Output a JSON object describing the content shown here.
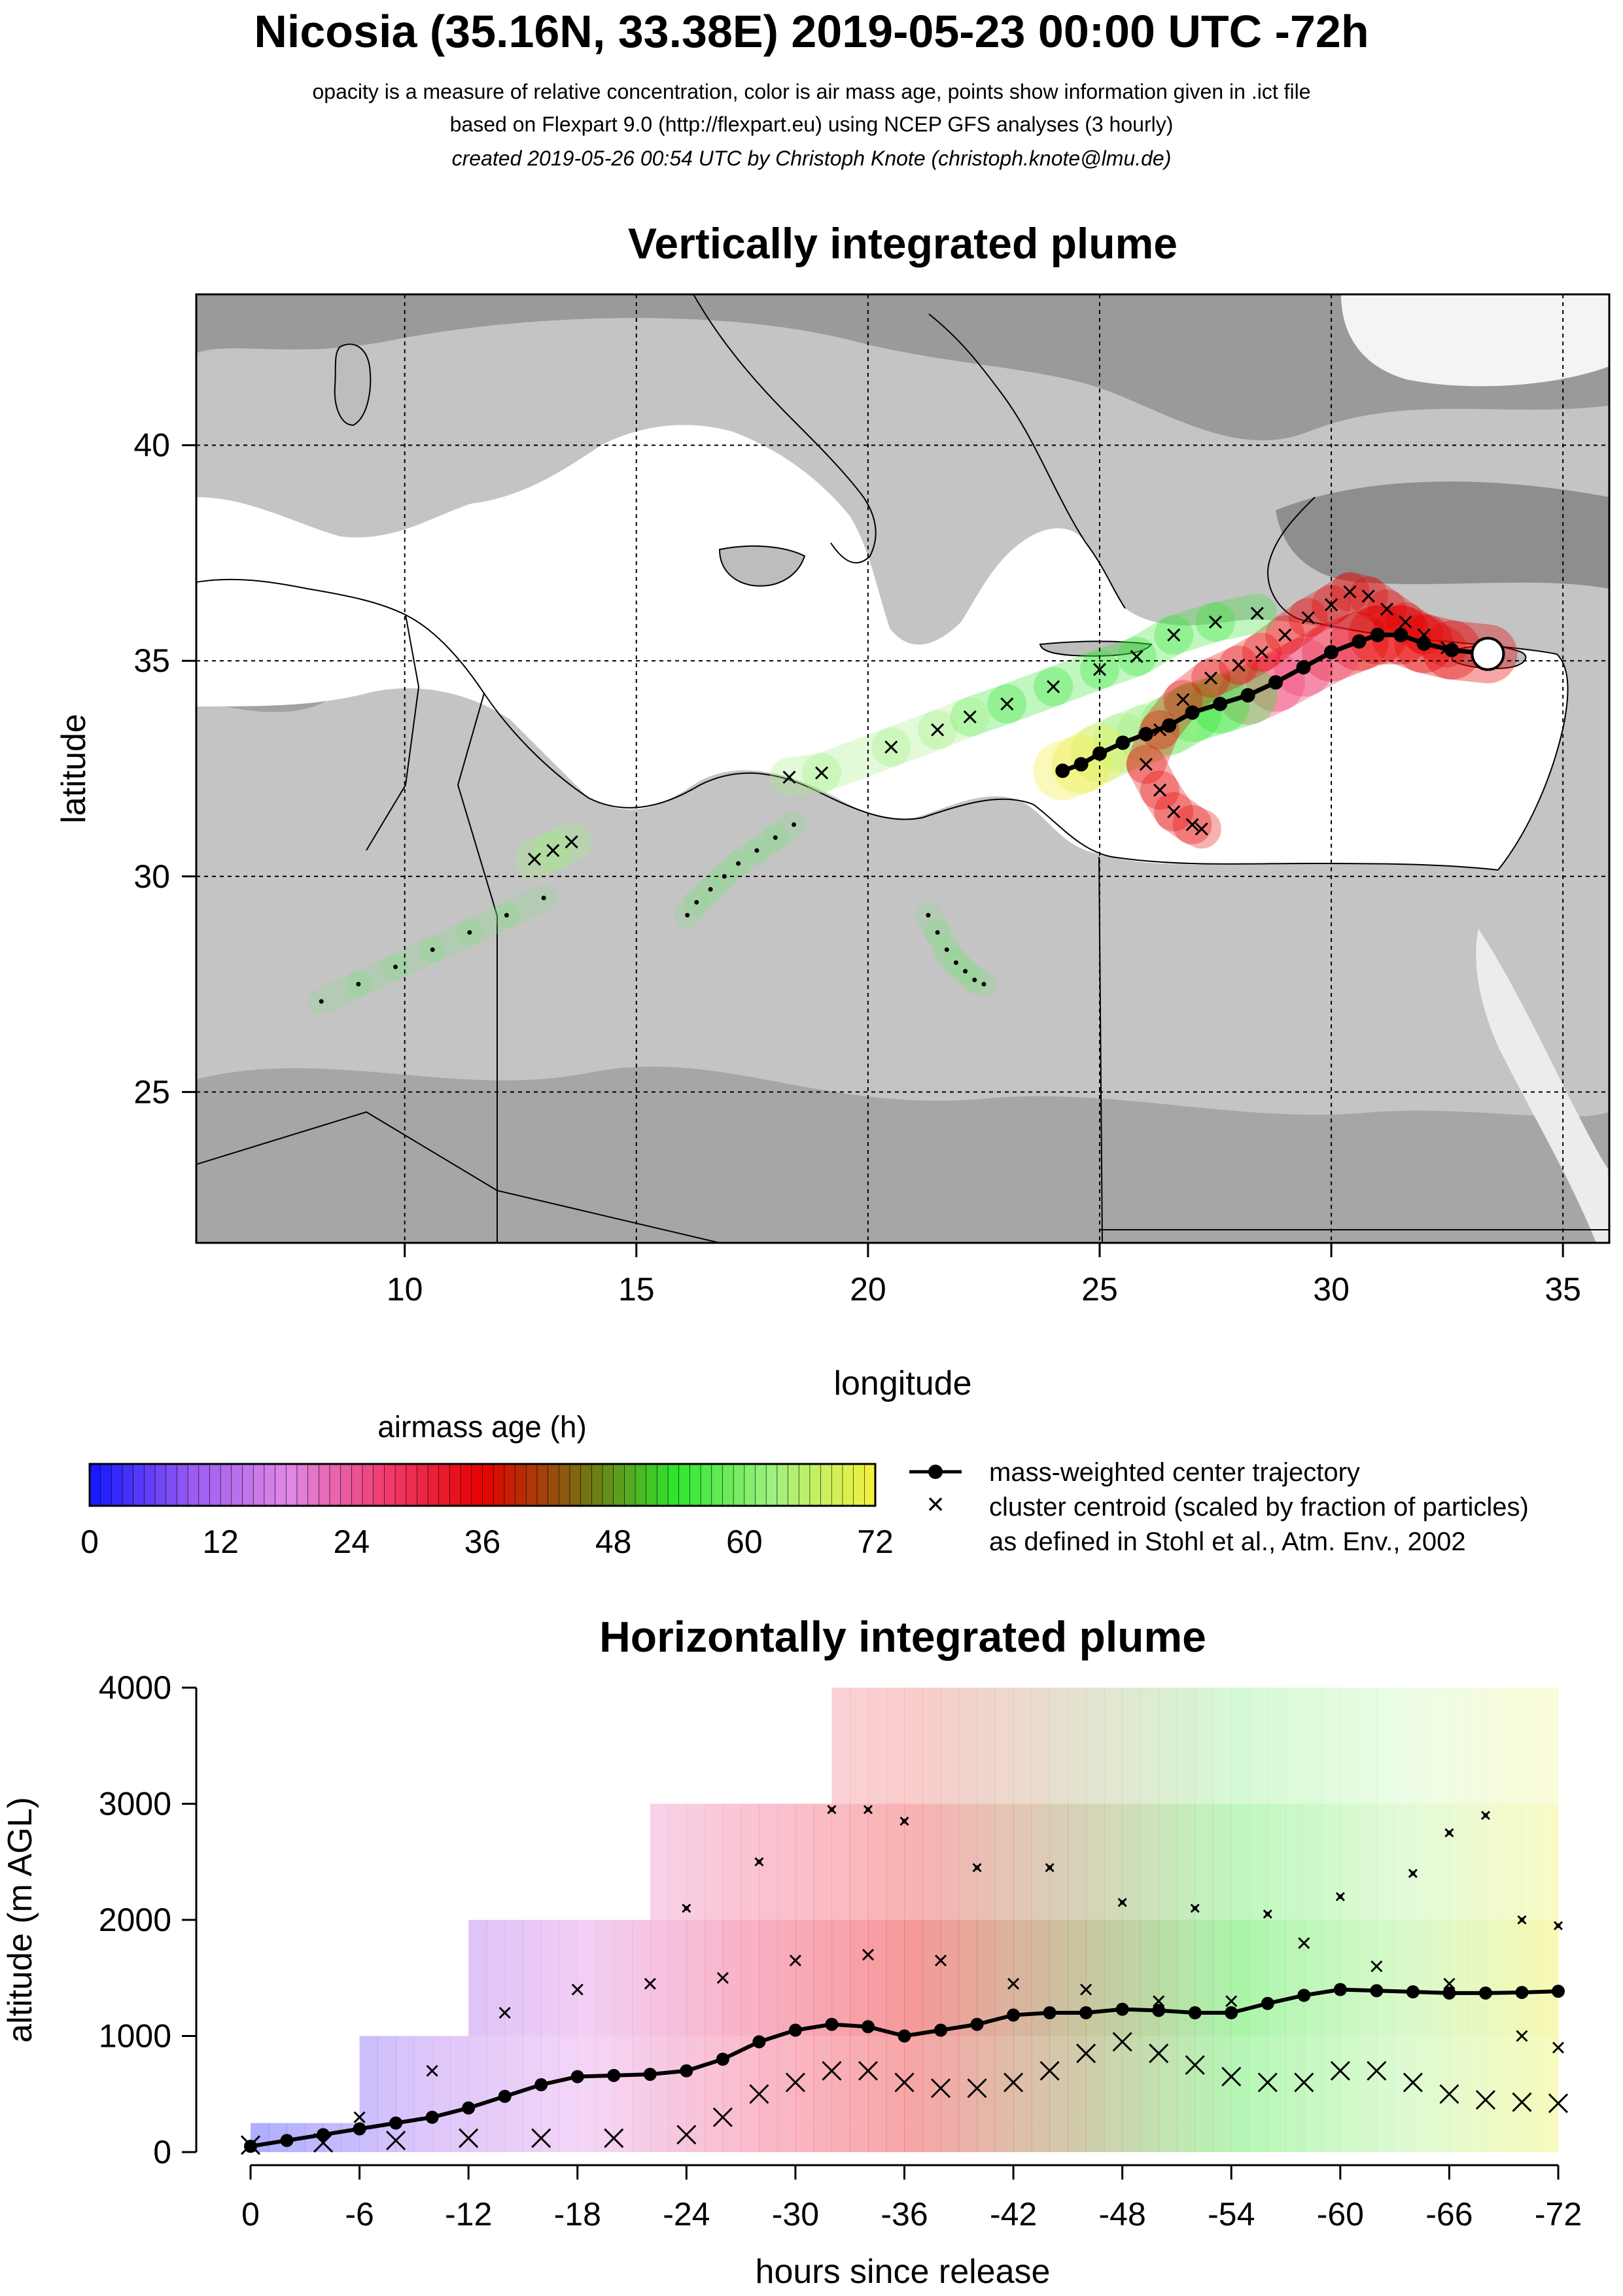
{
  "header": {
    "title": "Nicosia (35.16N, 33.38E) 2019-05-23 00:00 UTC -72h",
    "subtitle_1": "opacity is a measure of relative concentration, color is air mass age, points show information given in .ict file",
    "subtitle_2": "based on Flexpart 9.0 (http://flexpart.eu) using NCEP GFS analyses (3 hourly)",
    "subtitle_3": "created 2019-05-26 00:54 UTC by Christoph Knote (christoph.knote@lmu.de)"
  },
  "map_panel": {
    "title": "Vertically integrated plume",
    "xlabel": "longitude",
    "ylabel": "latitude"
  },
  "colorbar": {
    "title": "airmass age (h)",
    "ticks": [
      "0",
      "12",
      "24",
      "36",
      "48",
      "60",
      "72"
    ]
  },
  "legend": {
    "line_entry": "mass-weighted center trajectory",
    "cross_entry": "cluster centroid (scaled by fraction of particles)",
    "cross_entry_2": "as defined in Stohl et al., Atm. Env., 2002"
  },
  "profile_panel": {
    "title": "Horizontally integrated plume",
    "xlabel": "hours since release",
    "ylabel": "altitude (m AGL)"
  },
  "colors": {
    "age_scale": [
      "#1a1aff",
      "#9a5cf0",
      "#e088e6",
      "#f03c6e",
      "#e60000",
      "#7a6a10",
      "#2ee62e",
      "#a0f080",
      "#f0f040"
    ],
    "land": "#c8c8c8",
    "sea": "#ffffff"
  },
  "chart_data": [
    {
      "type": "scatter",
      "panel": "map",
      "xlim": [
        5.5,
        36
      ],
      "ylim": [
        21.5,
        43.5
      ],
      "x_ticks": [
        10,
        15,
        20,
        25,
        30,
        35
      ],
      "y_ticks": [
        25,
        30,
        35,
        40
      ],
      "grid": true,
      "release_point": {
        "lon": 33.38,
        "lat": 35.16
      },
      "center_trajectory": {
        "lon": [
          33.38,
          32.6,
          32.0,
          31.5,
          31.0,
          30.6,
          30.0,
          29.4,
          28.8,
          28.2,
          27.6,
          27.0,
          26.5,
          26.0,
          25.5,
          25.0,
          24.6,
          24.2
        ],
        "lat": [
          35.16,
          35.25,
          35.4,
          35.6,
          35.6,
          35.45,
          35.2,
          34.85,
          34.5,
          34.2,
          34.0,
          33.8,
          33.5,
          33.3,
          33.1,
          32.85,
          32.6,
          32.45
        ]
      },
      "cluster_centroids": {
        "lon": [
          32.5,
          32.0,
          31.6,
          31.2,
          30.8,
          30.4,
          30.0,
          29.5,
          29.0,
          28.5,
          28.0,
          27.4,
          26.8,
          26.3,
          26.0,
          26.3,
          26.6,
          27.0,
          27.2,
          28.4,
          27.5,
          26.6,
          25.8,
          25.0,
          24.0,
          23.0,
          22.2,
          21.5,
          20.5,
          19.0,
          18.3,
          13.6,
          13.2,
          12.8
        ],
        "lat": [
          35.3,
          35.6,
          35.9,
          36.2,
          36.5,
          36.6,
          36.3,
          36.0,
          35.6,
          35.2,
          34.9,
          34.6,
          34.1,
          33.4,
          32.6,
          32.0,
          31.5,
          31.2,
          31.1,
          36.1,
          35.9,
          35.6,
          35.1,
          34.8,
          34.4,
          34.0,
          33.7,
          33.4,
          33.0,
          32.4,
          32.3,
          30.8,
          30.6,
          30.4
        ]
      },
      "point_trail_1": {
        "lon": [
          8.2,
          9.0,
          9.8,
          10.6,
          11.4,
          12.2,
          13.0
        ],
        "lat": [
          27.1,
          27.5,
          27.9,
          28.3,
          28.7,
          29.1,
          29.5
        ]
      },
      "point_trail_2": {
        "lon": [
          21.3,
          21.5,
          21.7,
          21.9,
          22.1,
          22.3,
          22.5
        ],
        "lat": [
          29.1,
          28.7,
          28.3,
          28.0,
          27.8,
          27.6,
          27.5
        ]
      },
      "point_trail_3": {
        "lon": [
          16.1,
          16.3,
          16.6,
          16.9,
          17.2,
          17.6,
          18.0,
          18.4
        ],
        "lat": [
          29.1,
          29.4,
          29.7,
          30.0,
          30.3,
          30.6,
          30.9,
          31.2
        ]
      }
    },
    {
      "type": "line",
      "panel": "profile",
      "xlim": [
        0,
        -72
      ],
      "ylim": [
        0,
        4000
      ],
      "x_ticks": [
        0,
        -6,
        -12,
        -18,
        -24,
        -30,
        -36,
        -42,
        -48,
        -54,
        -60,
        -66,
        -72
      ],
      "y_ticks": [
        0,
        1000,
        2000,
        3000,
        4000
      ],
      "grid": false,
      "center_altitude": {
        "x": [
          0,
          -2,
          -4,
          -6,
          -8,
          -10,
          -12,
          -14,
          -16,
          -18,
          -20,
          -22,
          -24,
          -26,
          -28,
          -30,
          -32,
          -34,
          -36,
          -38,
          -40,
          -42,
          -44,
          -46,
          -48,
          -50,
          -52,
          -54,
          -56,
          -58,
          -60,
          -62,
          -64,
          -66,
          -68,
          -70,
          -72
        ],
        "y": [
          50,
          100,
          150,
          200,
          250,
          300,
          380,
          480,
          580,
          650,
          660,
          670,
          700,
          800,
          950,
          1050,
          1100,
          1080,
          1000,
          1050,
          1100,
          1180,
          1200,
          1200,
          1230,
          1220,
          1200,
          1200,
          1280,
          1350,
          1400,
          1390,
          1380,
          1370,
          1370,
          1375,
          1385
        ]
      },
      "lower_cluster_altitude": {
        "x": [
          0,
          -4,
          -8,
          -12,
          -16,
          -20,
          -24,
          -26,
          -28,
          -30,
          -32,
          -34,
          -36,
          -38,
          -40,
          -42,
          -44,
          -46,
          -48,
          -50,
          -52,
          -54,
          -56,
          -58,
          -60,
          -62,
          -64,
          -66,
          -68,
          -70,
          -72
        ],
        "y": [
          60,
          80,
          100,
          120,
          120,
          120,
          150,
          300,
          500,
          600,
          700,
          700,
          600,
          550,
          550,
          600,
          700,
          850,
          950,
          850,
          750,
          650,
          600,
          600,
          700,
          700,
          600,
          500,
          450,
          430,
          420
        ]
      },
      "upper_cluster_altitude": {
        "x": [
          -6,
          -10,
          -14,
          -18,
          -22,
          -26,
          -30,
          -34,
          -38,
          -42,
          -46,
          -50,
          -54,
          -58,
          -62,
          -66,
          -70,
          -72
        ],
        "y": [
          300,
          700,
          1200,
          1400,
          1450,
          1500,
          1650,
          1700,
          1650,
          1450,
          1400,
          1300,
          1300,
          1800,
          1600,
          1450,
          1000,
          900
        ]
      },
      "top_cluster_altitude": {
        "x": [
          -24,
          -28,
          -32,
          -34,
          -36,
          -40,
          -44,
          -48,
          -52,
          -56,
          -60,
          -64,
          -66,
          -68,
          -70,
          -72
        ],
        "y": [
          2100,
          2500,
          2950,
          2950,
          2850,
          2450,
          2450,
          2150,
          2100,
          2050,
          2200,
          2400,
          2750,
          2900,
          2000,
          1950
        ]
      }
    }
  ]
}
